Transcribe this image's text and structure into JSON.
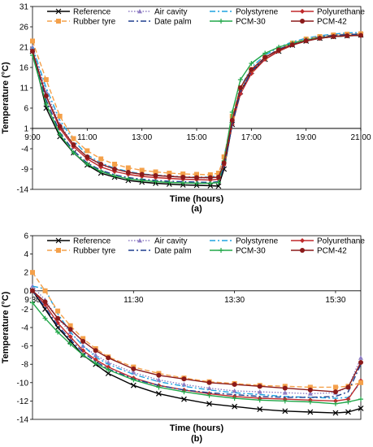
{
  "colors": {
    "reference": "#000000",
    "air_cavity": "#8e7cc3",
    "polystyrene": "#1fa3e0",
    "polyurethane": "#c0292b",
    "rubber_tyre": "#f4a04a",
    "date_palm": "#1f3f8f",
    "pcm30": "#22a84a",
    "pcm42": "#8b1a1a"
  },
  "chart_data": [
    {
      "type": "line",
      "panel_label": "(a)",
      "xlabel": "Time (hours)",
      "ylabel": "Temperature (°C)",
      "xlim": [
        9,
        21
      ],
      "ylim": [
        -14,
        31
      ],
      "x_ticks": [
        "9:00",
        "11:00",
        "13:00",
        "15:00",
        "17:00",
        "19:00",
        "21:00"
      ],
      "y_ticks": [
        31,
        26,
        21,
        16,
        11,
        6,
        1,
        -4,
        -9,
        -14
      ],
      "x_axis_at": 1,
      "grid": false,
      "legend_position": "top",
      "series": [
        {
          "name": "Reference",
          "key": "reference",
          "marker": "x",
          "dash": "solid",
          "x": [
            9,
            9.5,
            10,
            10.5,
            11,
            11.5,
            12,
            12.5,
            13,
            13.5,
            14,
            14.5,
            15,
            15.5,
            15.8,
            16,
            16.3,
            16.6,
            17,
            17.5,
            18,
            18.5,
            19,
            19.5,
            20,
            20.5,
            21
          ],
          "y": [
            20,
            6,
            -1,
            -5,
            -8,
            -10,
            -11,
            -11.8,
            -12.2,
            -12.5,
            -12.7,
            -12.9,
            -13,
            -13.1,
            -13.2,
            -9,
            2,
            10,
            15,
            18,
            20,
            21.5,
            22.5,
            23.2,
            23.6,
            23.8,
            24
          ]
        },
        {
          "name": "Air cavity",
          "key": "air_cavity",
          "marker": "triangle",
          "dash": "dot",
          "x": [
            9,
            9.5,
            10,
            10.5,
            11,
            11.5,
            12,
            12.5,
            13,
            13.5,
            14,
            14.5,
            15,
            15.5,
            15.8,
            16,
            16.3,
            16.6,
            17,
            17.5,
            18,
            18.5,
            19,
            19.5,
            20,
            20.5,
            21
          ],
          "y": [
            21,
            10,
            2,
            -3,
            -6,
            -8,
            -9,
            -9.8,
            -10.3,
            -10.6,
            -10.8,
            -11,
            -11.1,
            -11.2,
            -11,
            -7,
            3,
            10,
            15,
            18.5,
            20.5,
            21.8,
            22.7,
            23.4,
            23.8,
            24,
            24.1
          ]
        },
        {
          "name": "Polystyrene",
          "key": "polystyrene",
          "marker": "none",
          "dash": "dashdot",
          "x": [
            9,
            9.5,
            10,
            10.5,
            11,
            11.5,
            12,
            12.5,
            13,
            13.5,
            14,
            14.5,
            15,
            15.5,
            15.8,
            16,
            16.3,
            16.6,
            17,
            17.5,
            18,
            18.5,
            19,
            19.5,
            20,
            20.5,
            21
          ],
          "y": [
            21,
            11,
            3,
            -2,
            -5.5,
            -7.5,
            -8.8,
            -9.6,
            -10.2,
            -10.5,
            -10.7,
            -10.9,
            -11,
            -11,
            -10.5,
            -6,
            4,
            11,
            16,
            19,
            21,
            22.3,
            23.2,
            23.8,
            24.2,
            24.5,
            24.6
          ]
        },
        {
          "name": "Polyurethane",
          "key": "polyurethane",
          "marker": "diamond",
          "dash": "solid",
          "x": [
            9,
            9.5,
            10,
            10.5,
            11,
            11.5,
            12,
            12.5,
            13,
            13.5,
            14,
            14.5,
            15,
            15.5,
            15.8,
            16,
            16.3,
            16.6,
            17,
            17.5,
            18,
            18.5,
            19,
            19.5,
            20,
            20.5,
            21
          ],
          "y": [
            20,
            9,
            1,
            -3.5,
            -6.5,
            -8.5,
            -9.6,
            -10.3,
            -10.8,
            -11.1,
            -11.3,
            -11.5,
            -11.6,
            -11.7,
            -11.5,
            -8,
            2,
            9.5,
            14.5,
            18,
            20,
            21.5,
            22.5,
            23.2,
            23.6,
            23.8,
            23.9
          ]
        },
        {
          "name": "Rubber tyre",
          "key": "rubber_tyre",
          "marker": "square",
          "dash": "dash",
          "x": [
            9,
            9.5,
            10,
            10.5,
            11,
            11.5,
            12,
            12.5,
            13,
            13.5,
            14,
            14.5,
            15,
            15.5,
            15.8,
            16,
            16.3,
            16.6,
            17,
            17.5,
            18,
            18.5,
            19,
            19.5,
            20,
            20.5,
            21
          ],
          "y": [
            22.5,
            13,
            4,
            -1.5,
            -4.5,
            -6.5,
            -7.8,
            -8.7,
            -9.3,
            -9.7,
            -10,
            -10.2,
            -10.3,
            -10.4,
            -10,
            -6,
            4,
            11,
            15.5,
            18.5,
            20.5,
            22,
            23,
            23.6,
            24,
            24.2,
            24.3
          ]
        },
        {
          "name": "Date palm",
          "key": "date_palm",
          "marker": "none",
          "dash": "dashdot",
          "x": [
            9,
            9.5,
            10,
            10.5,
            11,
            11.5,
            12,
            12.5,
            13,
            13.5,
            14,
            14.5,
            15,
            15.5,
            15.8,
            16,
            16.3,
            16.6,
            17,
            17.5,
            18,
            18.5,
            19,
            19.5,
            20,
            20.5,
            21
          ],
          "y": [
            20,
            8,
            0,
            -4.5,
            -7.5,
            -9.3,
            -10.4,
            -11.1,
            -11.5,
            -11.8,
            -12,
            -12.1,
            -12.2,
            -12.3,
            -12.1,
            -8.5,
            2,
            10,
            15,
            18.5,
            20.5,
            21.8,
            22.8,
            23.5,
            23.9,
            24.1,
            24.2
          ]
        },
        {
          "name": "PCM-30",
          "key": "pcm30",
          "marker": "plus",
          "dash": "solid",
          "x": [
            9,
            9.5,
            10,
            10.5,
            11,
            11.5,
            12,
            12.5,
            13,
            13.5,
            14,
            14.5,
            15,
            15.5,
            15.8,
            16,
            16.3,
            16.6,
            17,
            17.5,
            18,
            18.5,
            19,
            19.5,
            20,
            20.5,
            21
          ],
          "y": [
            19,
            7,
            -0.5,
            -5,
            -7.8,
            -9.6,
            -10.7,
            -11.4,
            -11.8,
            -12.1,
            -12.3,
            -12.4,
            -12.5,
            -12.5,
            -12.3,
            -7,
            5,
            13,
            17,
            19.5,
            21,
            22,
            22.8,
            23.3,
            23.6,
            23.8,
            23.9
          ]
        },
        {
          "name": "PCM-42",
          "key": "pcm42",
          "marker": "circle",
          "dash": "solid",
          "x": [
            9,
            9.5,
            10,
            10.5,
            11,
            11.5,
            12,
            12.5,
            13,
            13.5,
            14,
            14.5,
            15,
            15.5,
            15.8,
            16,
            16.3,
            16.6,
            17,
            17.5,
            18,
            18.5,
            19,
            19.5,
            20,
            20.5,
            21
          ],
          "y": [
            20,
            9,
            1.5,
            -3,
            -6,
            -7.8,
            -9,
            -9.8,
            -10.3,
            -10.6,
            -10.8,
            -11,
            -11.1,
            -11.1,
            -11,
            -7.5,
            3,
            11,
            15.5,
            18.5,
            20.3,
            21.6,
            22.6,
            23.2,
            23.6,
            23.8,
            23.9
          ]
        }
      ]
    },
    {
      "type": "line",
      "panel_label": "(b)",
      "xlabel": "Time (hours)",
      "ylabel": "Temperature (°C)",
      "xlim": [
        9.5,
        16
      ],
      "ylim": [
        -14,
        6
      ],
      "x_ticks": [
        "9:30",
        "11:30",
        "13:30",
        "15:30"
      ],
      "x_tick_values": [
        9.5,
        11.5,
        13.5,
        15.5
      ],
      "y_ticks": [
        6,
        4,
        2,
        0,
        -2,
        -4,
        -6,
        -8,
        -10,
        -12,
        -14
      ],
      "x_axis_at": 0,
      "grid": false,
      "legend_position": "top",
      "series": [
        {
          "name": "Reference",
          "key": "reference",
          "marker": "x",
          "dash": "solid",
          "x": [
            9.5,
            9.75,
            10,
            10.25,
            10.5,
            10.75,
            11,
            11.5,
            12,
            12.5,
            13,
            13.5,
            14,
            14.5,
            15,
            15.5,
            15.75,
            16
          ],
          "y": [
            0,
            -2,
            -4,
            -5.5,
            -7,
            -8,
            -9,
            -10.3,
            -11.2,
            -11.8,
            -12.3,
            -12.6,
            -12.9,
            -13.1,
            -13.2,
            -13.3,
            -13.2,
            -12.8
          ]
        },
        {
          "name": "Air cavity",
          "key": "air_cavity",
          "marker": "triangle",
          "dash": "dot",
          "x": [
            9.5,
            9.75,
            10,
            10.25,
            10.5,
            10.75,
            11,
            11.5,
            12,
            12.5,
            13,
            13.5,
            14,
            14.5,
            15,
            15.5,
            15.75,
            16
          ],
          "y": [
            0.5,
            -1,
            -3,
            -4.5,
            -6,
            -7,
            -7.8,
            -8.9,
            -9.7,
            -10.2,
            -10.6,
            -10.9,
            -11,
            -11.1,
            -11.2,
            -11.1,
            -10.5,
            -7.3
          ]
        },
        {
          "name": "Polystyrene",
          "key": "polystyrene",
          "marker": "none",
          "dash": "dashdot",
          "x": [
            9.5,
            9.75,
            10,
            10.25,
            10.5,
            10.75,
            11,
            11.5,
            12,
            12.5,
            13,
            13.5,
            14,
            14.5,
            15,
            15.5,
            15.75,
            16
          ],
          "y": [
            0.5,
            0.2,
            -2.5,
            -4.5,
            -6,
            -7.2,
            -8,
            -9.1,
            -9.9,
            -10.4,
            -10.8,
            -11.1,
            -11.3,
            -11.5,
            -11.6,
            -11.7,
            -11.6,
            -10
          ]
        },
        {
          "name": "Polyurethane",
          "key": "polyurethane",
          "marker": "diamond",
          "dash": "solid",
          "x": [
            9.5,
            9.75,
            10,
            10.25,
            10.5,
            10.75,
            11,
            11.5,
            12,
            12.5,
            13,
            13.5,
            14,
            14.5,
            15,
            15.5,
            15.75,
            16
          ],
          "y": [
            0,
            -1.5,
            -3.5,
            -5,
            -6.5,
            -7.5,
            -8.3,
            -9.5,
            -10.3,
            -10.8,
            -11.2,
            -11.5,
            -11.7,
            -11.8,
            -11.9,
            -12,
            -11.8,
            -9.8
          ]
        },
        {
          "name": "Rubber tyre",
          "key": "rubber_tyre",
          "marker": "square",
          "dash": "dash",
          "x": [
            9.5,
            9.75,
            10,
            10.25,
            10.5,
            10.75,
            11,
            11.5,
            12,
            12.5,
            13,
            13.5,
            14,
            14.5,
            15,
            15.5,
            15.75,
            16
          ],
          "y": [
            2,
            0,
            -2.2,
            -3.8,
            -5.2,
            -6.3,
            -7.2,
            -8.3,
            -9,
            -9.5,
            -9.9,
            -10.1,
            -10.3,
            -10.4,
            -10.5,
            -10.5,
            -10.4,
            -10
          ]
        },
        {
          "name": "Date palm",
          "key": "date_palm",
          "marker": "none",
          "dash": "dashdot",
          "x": [
            9.5,
            9.75,
            10,
            10.25,
            10.5,
            10.75,
            11,
            11.5,
            12,
            12.5,
            13,
            13.5,
            14,
            14.5,
            15,
            15.5,
            15.75,
            16
          ],
          "y": [
            0,
            -1.8,
            -3.8,
            -5.3,
            -6.7,
            -7.7,
            -8.5,
            -9.6,
            -10.3,
            -10.8,
            -11.1,
            -11.3,
            -11.5,
            -11.6,
            -11.6,
            -11.5,
            -11,
            -8
          ]
        },
        {
          "name": "PCM-30",
          "key": "pcm30",
          "marker": "plus",
          "dash": "solid",
          "x": [
            9.5,
            9.75,
            10,
            10.25,
            10.5,
            10.75,
            11,
            11.5,
            12,
            12.5,
            13,
            13.5,
            14,
            14.5,
            15,
            15.5,
            15.75,
            16
          ],
          "y": [
            -1.3,
            -3,
            -4.5,
            -5.8,
            -7,
            -7.9,
            -8.6,
            -9.7,
            -10.5,
            -11,
            -11.4,
            -11.7,
            -11.9,
            -12,
            -12.1,
            -12.3,
            -12.1,
            -11.8
          ]
        },
        {
          "name": "PCM-42",
          "key": "pcm42",
          "marker": "circle",
          "dash": "solid",
          "x": [
            9.5,
            9.75,
            10,
            10.25,
            10.5,
            10.75,
            11,
            11.5,
            12,
            12.5,
            13,
            13.5,
            14,
            14.5,
            15,
            15.5,
            15.75,
            16
          ],
          "y": [
            0,
            -1.2,
            -3,
            -4.2,
            -5.5,
            -6.5,
            -7.3,
            -8.5,
            -9.2,
            -9.6,
            -10,
            -10.2,
            -10.4,
            -10.6,
            -10.8,
            -11,
            -10.5,
            -7.8
          ]
        }
      ]
    }
  ]
}
